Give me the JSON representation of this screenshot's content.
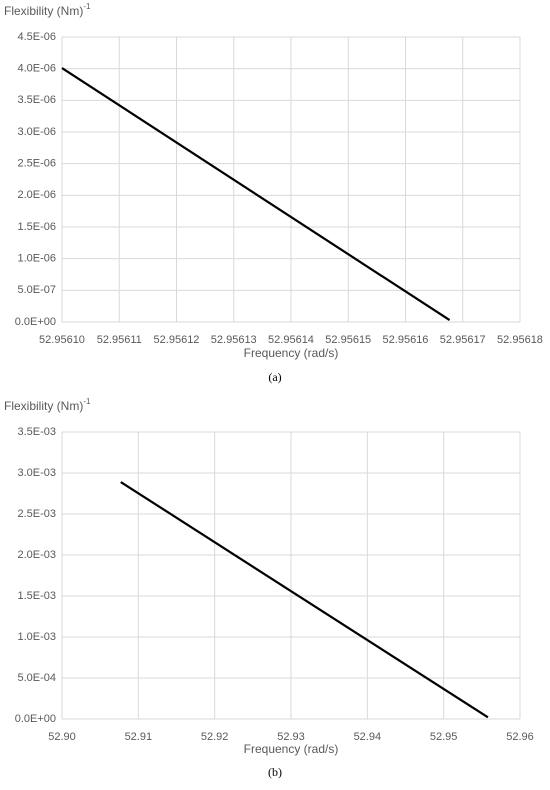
{
  "chart_data": [
    {
      "type": "line",
      "ylabel": "Flexibility (Nm)",
      "ylabel_superscript": "-1",
      "xlabel": "Frequency (rad/s)",
      "caption": "(a)",
      "x": [
        52.9561,
        52.9561677
      ],
      "series": [
        {
          "color": "#000000",
          "values": [
            4.01e-06,
            3e-08
          ]
        }
      ],
      "xlim": [
        52.9561,
        52.95618
      ],
      "xticks": [
        {
          "value": 52.9561,
          "label": "52.95610"
        },
        {
          "value": 52.95611,
          "label": "52.95611"
        },
        {
          "value": 52.95612,
          "label": "52.95612"
        },
        {
          "value": 52.95613,
          "label": "52.95613"
        },
        {
          "value": 52.95614,
          "label": "52.95614"
        },
        {
          "value": 52.95615,
          "label": "52.95615"
        },
        {
          "value": 52.95616,
          "label": "52.95616"
        },
        {
          "value": 52.95617,
          "label": "52.95617"
        },
        {
          "value": 52.95618,
          "label": "52.95618"
        }
      ],
      "ylim": [
        0,
        4.5e-06
      ],
      "yticks": [
        {
          "value": 0,
          "label": "0.0E+00"
        },
        {
          "value": 5e-07,
          "label": "5.0E-07"
        },
        {
          "value": 1e-06,
          "label": "1.0E-06"
        },
        {
          "value": 1.5e-06,
          "label": "1.5E-06"
        },
        {
          "value": 2e-06,
          "label": "2.0E-06"
        },
        {
          "value": 2.5e-06,
          "label": "2.5E-06"
        },
        {
          "value": 3e-06,
          "label": "3.0E-06"
        },
        {
          "value": 3.5e-06,
          "label": "3.5E-06"
        },
        {
          "value": 4e-06,
          "label": "4.0E-06"
        },
        {
          "value": 4.5e-06,
          "label": "4.5E-06"
        }
      ],
      "grid": true
    },
    {
      "type": "line",
      "ylabel": "Flexibility (Nm)",
      "ylabel_superscript": "-1",
      "xlabel": "Frequency (rad/s)",
      "caption": "(b)",
      "x": [
        52.9077,
        52.9558
      ],
      "series": [
        {
          "color": "#000000",
          "values": [
            0.00289,
            2e-05
          ]
        }
      ],
      "xlim": [
        52.9,
        52.96
      ],
      "xticks": [
        {
          "value": 52.9,
          "label": "52.90"
        },
        52.91,
        52.92,
        52.93,
        52.94,
        52.95,
        {
          "value": 52.96,
          "label": "52.96"
        }
      ],
      "ylim": [
        0,
        0.0035
      ],
      "yticks": [
        {
          "value": 0,
          "label": "0.0E+00"
        },
        {
          "value": 0.0005,
          "label": "5.0E-04"
        },
        {
          "value": 0.001,
          "label": "1.0E-03"
        },
        {
          "value": 0.0015,
          "label": "1.5E-03"
        },
        {
          "value": 0.002,
          "label": "2.0E-03"
        },
        {
          "value": 0.0025,
          "label": "2.5E-03"
        },
        {
          "value": 0.003,
          "label": "3.0E-03"
        },
        {
          "value": 0.0035,
          "label": "3.5E-03"
        }
      ],
      "grid": true
    }
  ]
}
